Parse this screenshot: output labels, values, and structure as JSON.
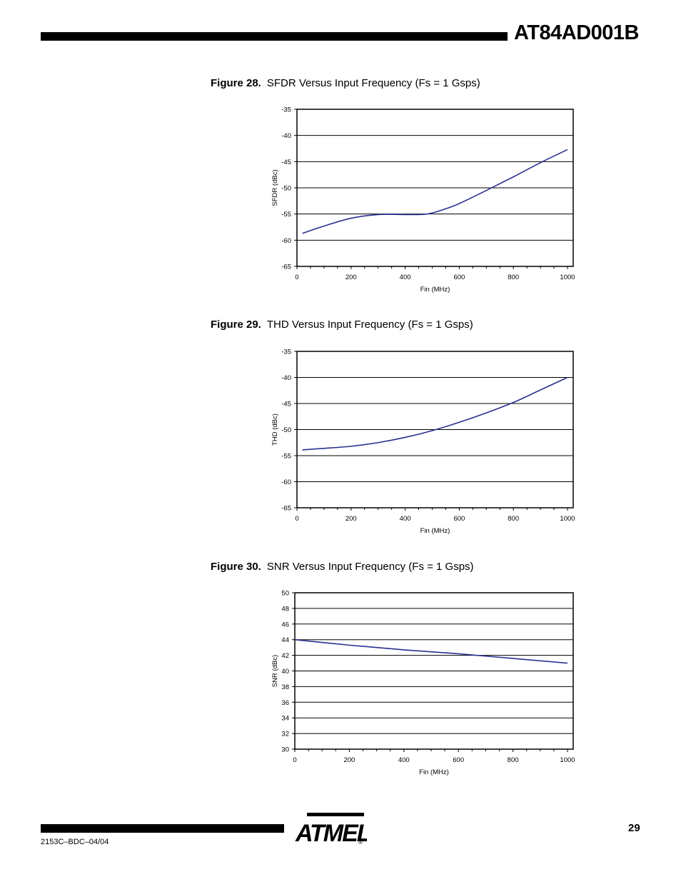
{
  "header": {
    "title": "AT84AD001B"
  },
  "figures": [
    {
      "number": "Figure 28.",
      "caption": "SFDR Versus Input Frequency (Fs = 1 Gsps)"
    },
    {
      "number": "Figure 29.",
      "caption": "THD Versus Input Frequency (Fs = 1 Gsps)"
    },
    {
      "number": "Figure 30.",
      "caption": "SNR Versus Input Frequency (Fs = 1 Gsps)"
    }
  ],
  "chart_data": [
    {
      "type": "line",
      "xlabel": "Fin (MHz)",
      "ylabel": "SFDR (dBc)",
      "xlim": [
        0,
        1000
      ],
      "ylim": [
        -65,
        -35
      ],
      "xticks": [
        0,
        200,
        400,
        600,
        800,
        1000
      ],
      "yticks": [
        -35,
        -40,
        -45,
        -50,
        -55,
        -60,
        -65
      ],
      "grid": "horizontal",
      "color": "#2b2f8f",
      "series": [
        {
          "x": [
            20,
            100,
            200,
            300,
            400,
            480,
            550,
            600,
            700,
            800,
            900,
            1000
          ],
          "y": [
            -58.7,
            -57.3,
            -55.8,
            -55.1,
            -55.1,
            -55.0,
            -54.0,
            -53.0,
            -50.5,
            -47.9,
            -45.2,
            -42.7
          ]
        }
      ]
    },
    {
      "type": "line",
      "xlabel": "Fin (MHz)",
      "ylabel": "THD (dBc)",
      "xlim": [
        0,
        1000
      ],
      "ylim": [
        -65,
        -35
      ],
      "xticks": [
        0,
        200,
        400,
        600,
        800,
        1000
      ],
      "yticks": [
        -35,
        -40,
        -45,
        -50,
        -55,
        -60,
        -65
      ],
      "grid": "horizontal",
      "color": "#2b2f8f",
      "series": [
        {
          "x": [
            20,
            100,
            200,
            300,
            400,
            500,
            600,
            700,
            800,
            900,
            1000
          ],
          "y": [
            -53.9,
            -53.6,
            -53.2,
            -52.5,
            -51.5,
            -50.2,
            -48.6,
            -46.8,
            -44.8,
            -42.4,
            -40.0
          ]
        }
      ]
    },
    {
      "type": "line",
      "xlabel": "Fin (MHz)",
      "ylabel": "SNR (dBc)",
      "xlim": [
        0,
        1000
      ],
      "ylim": [
        30,
        50
      ],
      "xticks": [
        0,
        200,
        400,
        600,
        800,
        1000
      ],
      "yticks": [
        50,
        48,
        46,
        44,
        42,
        40,
        38,
        36,
        34,
        32,
        30
      ],
      "grid": "horizontal",
      "color": "#2b2f8f",
      "series": [
        {
          "x": [
            0,
            200,
            400,
            600,
            800,
            1000
          ],
          "y": [
            44.0,
            43.3,
            42.7,
            42.2,
            41.6,
            41.0
          ]
        }
      ]
    }
  ],
  "footer": {
    "doc_code": "2153C–BDC–04/04",
    "page_number": "29",
    "logo_text": "ATMEL",
    "registered_mark": "®"
  }
}
